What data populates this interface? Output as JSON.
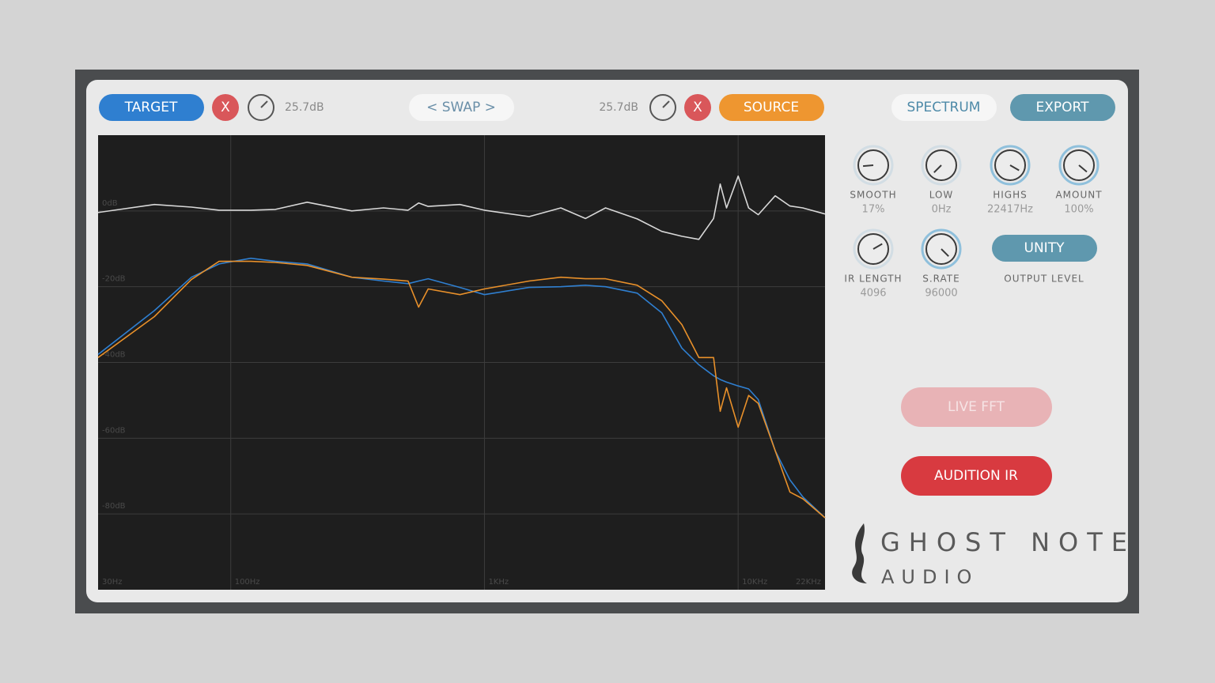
{
  "header": {
    "target": "TARGET",
    "target_close": "X",
    "target_level": "25.7dB",
    "swap": "< SWAP >",
    "source_level": "25.7dB",
    "source_close": "X",
    "source": "SOURCE",
    "spectrum": "SPECTRUM",
    "export": "EXPORT"
  },
  "knobs": [
    {
      "label": "SMOOTH",
      "value": "17%"
    },
    {
      "label": "LOW",
      "value": "0Hz"
    },
    {
      "label": "HIGHS",
      "value": "22417Hz"
    },
    {
      "label": "AMOUNT",
      "value": "100%"
    },
    {
      "label": "IR LENGTH",
      "value": "4096"
    },
    {
      "label": "S.RATE",
      "value": "96000"
    }
  ],
  "unity": "UNITY",
  "output_level": "OUTPUT LEVEL",
  "live_fft": "LIVE FFT",
  "audition": "AUDITION IR",
  "logo": {
    "line1": "GHOST NOTE",
    "line2": "AUDIO"
  },
  "chart_data": {
    "type": "line",
    "log_x": true,
    "grid": true,
    "xlim": [
      30,
      22000
    ],
    "ylim": [
      -100,
      20
    ],
    "xticks": [
      {
        "value": 30,
        "label": "30Hz"
      },
      {
        "value": 100,
        "label": "100Hz"
      },
      {
        "value": 1000,
        "label": "1KHz"
      },
      {
        "value": 10000,
        "label": "10KHz"
      },
      {
        "value": 22000,
        "label": "22KHz"
      }
    ],
    "yticks": [
      {
        "value": 0,
        "label": "0dB"
      },
      {
        "value": -20,
        "label": "-20dB"
      },
      {
        "value": -40,
        "label": "-40dB"
      },
      {
        "value": -60,
        "label": "-60dB"
      },
      {
        "value": -80,
        "label": "-80dB"
      }
    ],
    "x": [
      30,
      50,
      70,
      90,
      120,
      150,
      200,
      300,
      400,
      500,
      550,
      600,
      800,
      1000,
      1500,
      2000,
      2500,
      3000,
      4000,
      5000,
      6000,
      7000,
      8000,
      8500,
      9000,
      10000,
      11000,
      12000,
      14000,
      16000,
      18000,
      22000
    ],
    "series": [
      {
        "color": "#d8d8d8",
        "values": [
          -0.4,
          1.7,
          1.0,
          0.2,
          0.2,
          0.4,
          2.3,
          0,
          0.8,
          0.2,
          2.1,
          1.2,
          1.7,
          0.2,
          -1.5,
          0.8,
          -2.0,
          0.8,
          -2.1,
          -5.4,
          -6.7,
          -7.5,
          -2.0,
          7.1,
          0.8,
          9.2,
          0.8,
          -1.0,
          4.0,
          1.3,
          0.8,
          -0.8
        ]
      },
      {
        "color": "#2f7fd0",
        "values": [
          -37.9,
          -26.3,
          -17.5,
          -14.0,
          -12.5,
          -13.3,
          -14.0,
          -17.5,
          -18.5,
          -19.2,
          -18.5,
          -17.9,
          -20.2,
          -22.1,
          -20.2,
          -20.0,
          -19.6,
          -20.0,
          -21.7,
          -26.9,
          -36.2,
          -40.6,
          -43.5,
          -44.5,
          -45.2,
          -46.2,
          -47.0,
          -49.8,
          -63.3,
          -71.0,
          -75.5,
          -81.0
        ]
      },
      {
        "color": "#e8902a",
        "values": [
          -38.7,
          -27.9,
          -18.1,
          -13.3,
          -13.3,
          -13.6,
          -14.4,
          -17.5,
          -18.0,
          -18.5,
          -25.4,
          -20.6,
          -22.1,
          -20.6,
          -18.5,
          -17.5,
          -17.9,
          -17.9,
          -19.6,
          -23.7,
          -30.0,
          -38.7,
          -38.7,
          -52.9,
          -46.7,
          -57.1,
          -48.7,
          -50.8,
          -63.3,
          -74.2,
          -76.0,
          -81.0
        ]
      }
    ]
  }
}
